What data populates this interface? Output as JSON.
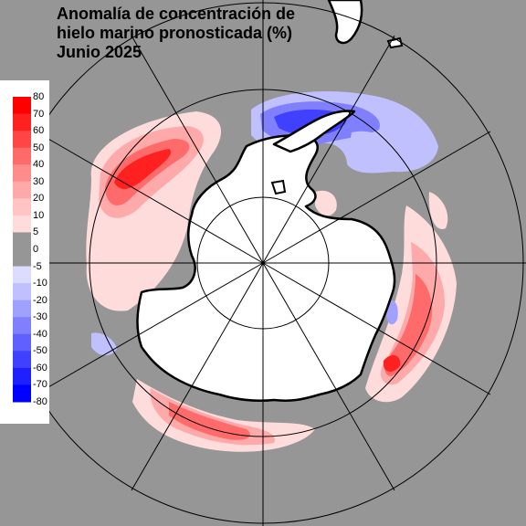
{
  "title": {
    "line1": "Anomalía de concentración de",
    "line2": "hielo marino pronosticada (%)",
    "line3": "Junio 2025"
  },
  "legend": {
    "ticks": [
      "80",
      "70",
      "60",
      "50",
      "40",
      "30",
      "20",
      "10",
      "5",
      "0",
      "-5",
      "-10",
      "-20",
      "-30",
      "-40",
      "-50",
      "-60",
      "-70",
      "-80"
    ],
    "colors": [
      "#ff0000",
      "#ff2020",
      "#ff4545",
      "#ff6a6a",
      "#ff8c8c",
      "#ffaaaa",
      "#ffc4c4",
      "#ffdcdc",
      "#969696",
      "#969696",
      "#dcdcff",
      "#c0c0ff",
      "#a0a0ff",
      "#8080ff",
      "#6060ff",
      "#4040ff",
      "#2020ff",
      "#0000ff"
    ]
  },
  "colors": {
    "background": "#969696",
    "land": "#ffffff",
    "grid": "#000000"
  }
}
